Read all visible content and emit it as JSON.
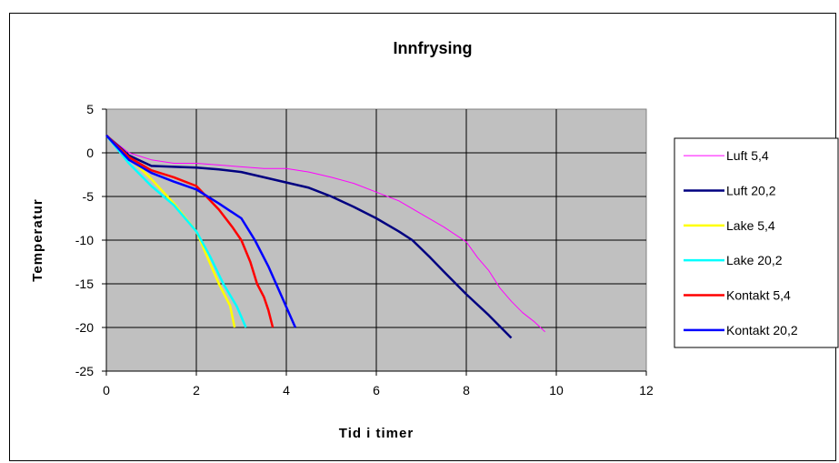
{
  "chart_data": {
    "type": "line",
    "title": "Innfrysing",
    "xlabel": "Tid i timer",
    "ylabel": "Temperatur",
    "xlim": [
      0,
      12
    ],
    "ylim": [
      -25,
      5
    ],
    "xticks": [
      0,
      2,
      4,
      6,
      8,
      10,
      12
    ],
    "yticks": [
      5,
      0,
      -5,
      -10,
      -15,
      -20,
      -25
    ],
    "grid": true,
    "plot_background": "#c0c0c0",
    "legend_position": "right",
    "series": [
      {
        "name": "Luft 5,4",
        "color": "#ff00ff",
        "width": 1,
        "x": [
          0,
          0.5,
          1,
          1.5,
          2,
          2.5,
          3,
          3.5,
          4,
          4.5,
          5,
          5.5,
          6,
          6.5,
          7,
          7.5,
          8,
          8.25,
          8.5,
          8.75,
          9,
          9.25,
          9.5,
          9.75
        ],
        "y": [
          2,
          0,
          -0.8,
          -1.2,
          -1.2,
          -1.4,
          -1.6,
          -1.8,
          -1.8,
          -2.2,
          -2.8,
          -3.5,
          -4.5,
          -5.5,
          -7,
          -8.5,
          -10.2,
          -12,
          -13.5,
          -15.5,
          -17,
          -18.3,
          -19.3,
          -20.5
        ]
      },
      {
        "name": "Luft 20,2",
        "color": "#000080",
        "width": 2.5,
        "x": [
          0,
          0.5,
          1,
          1.5,
          2,
          2.5,
          3,
          3.5,
          4,
          4.5,
          5,
          5.5,
          6,
          6.5,
          6.8,
          7.2,
          7.5,
          8,
          8.5,
          9
        ],
        "y": [
          2,
          -0.3,
          -1.5,
          -1.6,
          -1.7,
          -1.9,
          -2.2,
          -2.8,
          -3.4,
          -4.0,
          -5,
          -6.2,
          -7.5,
          -9,
          -10,
          -12,
          -13.6,
          -16.2,
          -18.6,
          -21.2
        ]
      },
      {
        "name": "Lake 5,4",
        "color": "#ffff00",
        "width": 2.5,
        "x": [
          0,
          0.5,
          1,
          1.5,
          2,
          2.25,
          2.5,
          2.75,
          2.85
        ],
        "y": [
          2,
          -0.5,
          -3,
          -5.8,
          -9,
          -12,
          -15,
          -17.5,
          -20
        ]
      },
      {
        "name": "Lake 20,2",
        "color": "#00ffff",
        "width": 2.5,
        "x": [
          0,
          0.5,
          1,
          1.5,
          2,
          2.3,
          2.6,
          2.9,
          3.1
        ],
        "y": [
          2,
          -1.2,
          -3.8,
          -6,
          -9,
          -11.8,
          -15,
          -17.6,
          -20
        ]
      },
      {
        "name": "Kontakt 5,4",
        "color": "#ff0000",
        "width": 2.5,
        "x": [
          0,
          0.5,
          1,
          1.5,
          2,
          2.5,
          2.8,
          3.0,
          3.2,
          3.35,
          3.5,
          3.6,
          3.7
        ],
        "y": [
          2,
          -0.5,
          -2,
          -2.8,
          -3.8,
          -6.5,
          -8.5,
          -10,
          -12.5,
          -15,
          -16.5,
          -18,
          -20
        ]
      },
      {
        "name": "Kontakt 20,2",
        "color": "#0000ff",
        "width": 2.5,
        "x": [
          0,
          0.5,
          1,
          1.5,
          2,
          2.5,
          3,
          3.3,
          3.6,
          3.9,
          4.2
        ],
        "y": [
          2,
          -0.8,
          -2.3,
          -3.3,
          -4.2,
          -5.8,
          -7.5,
          -10,
          -13,
          -16.5,
          -20
        ]
      }
    ]
  }
}
